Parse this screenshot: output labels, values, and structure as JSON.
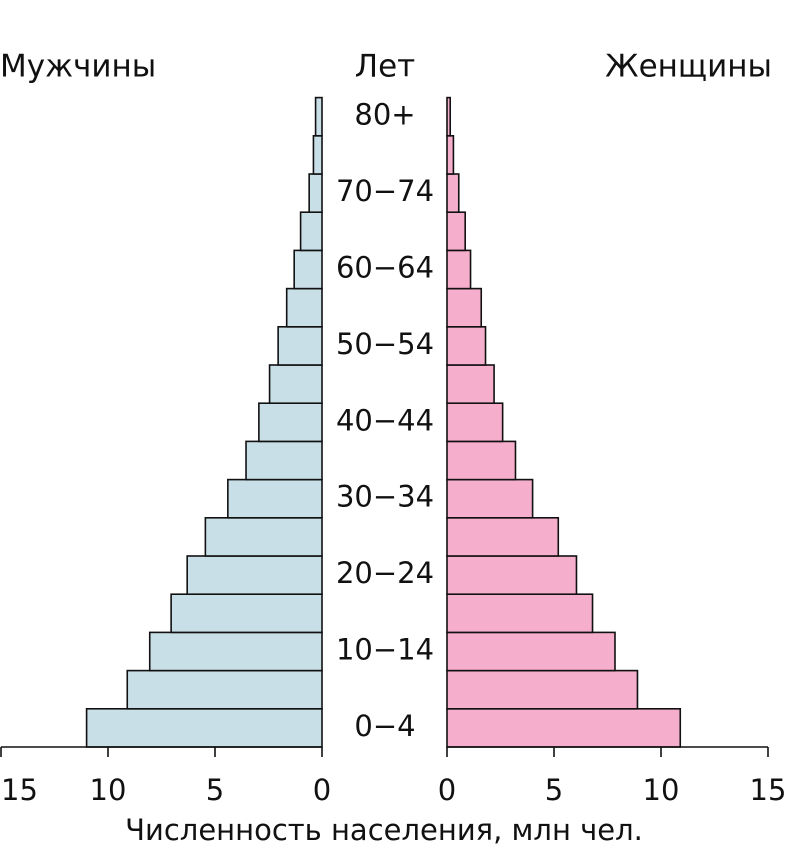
{
  "chart_data": {
    "type": "population_pyramid",
    "left_label": "Мужчины",
    "center_label": "Лет",
    "right_label": "Женщины",
    "x_label": "Численность населения, млн чел.",
    "categories": [
      "0−4",
      null,
      "10−14",
      null,
      "20−24",
      null,
      "30−34",
      null,
      "40−44",
      null,
      "50−54",
      null,
      "60−64",
      null,
      "70−74",
      null,
      "80+"
    ],
    "series": [
      {
        "name": "Мужчины",
        "color": "#c9dfe7",
        "side": "left",
        "values": [
          11.0,
          9.1,
          8.05,
          7.05,
          6.3,
          5.45,
          4.4,
          3.55,
          2.95,
          2.45,
          2.05,
          1.65,
          1.3,
          1.0,
          0.6,
          0.4,
          0.3
        ]
      },
      {
        "name": "Женщины",
        "color": "#f5aecb",
        "side": "right",
        "values": [
          10.9,
          8.9,
          7.85,
          6.8,
          6.05,
          5.2,
          4.0,
          3.2,
          2.6,
          2.2,
          1.8,
          1.6,
          1.1,
          0.85,
          0.55,
          0.3,
          0.15
        ]
      }
    ],
    "xlim": [
      0,
      15
    ],
    "xticks": [
      0,
      5,
      10,
      15
    ]
  }
}
